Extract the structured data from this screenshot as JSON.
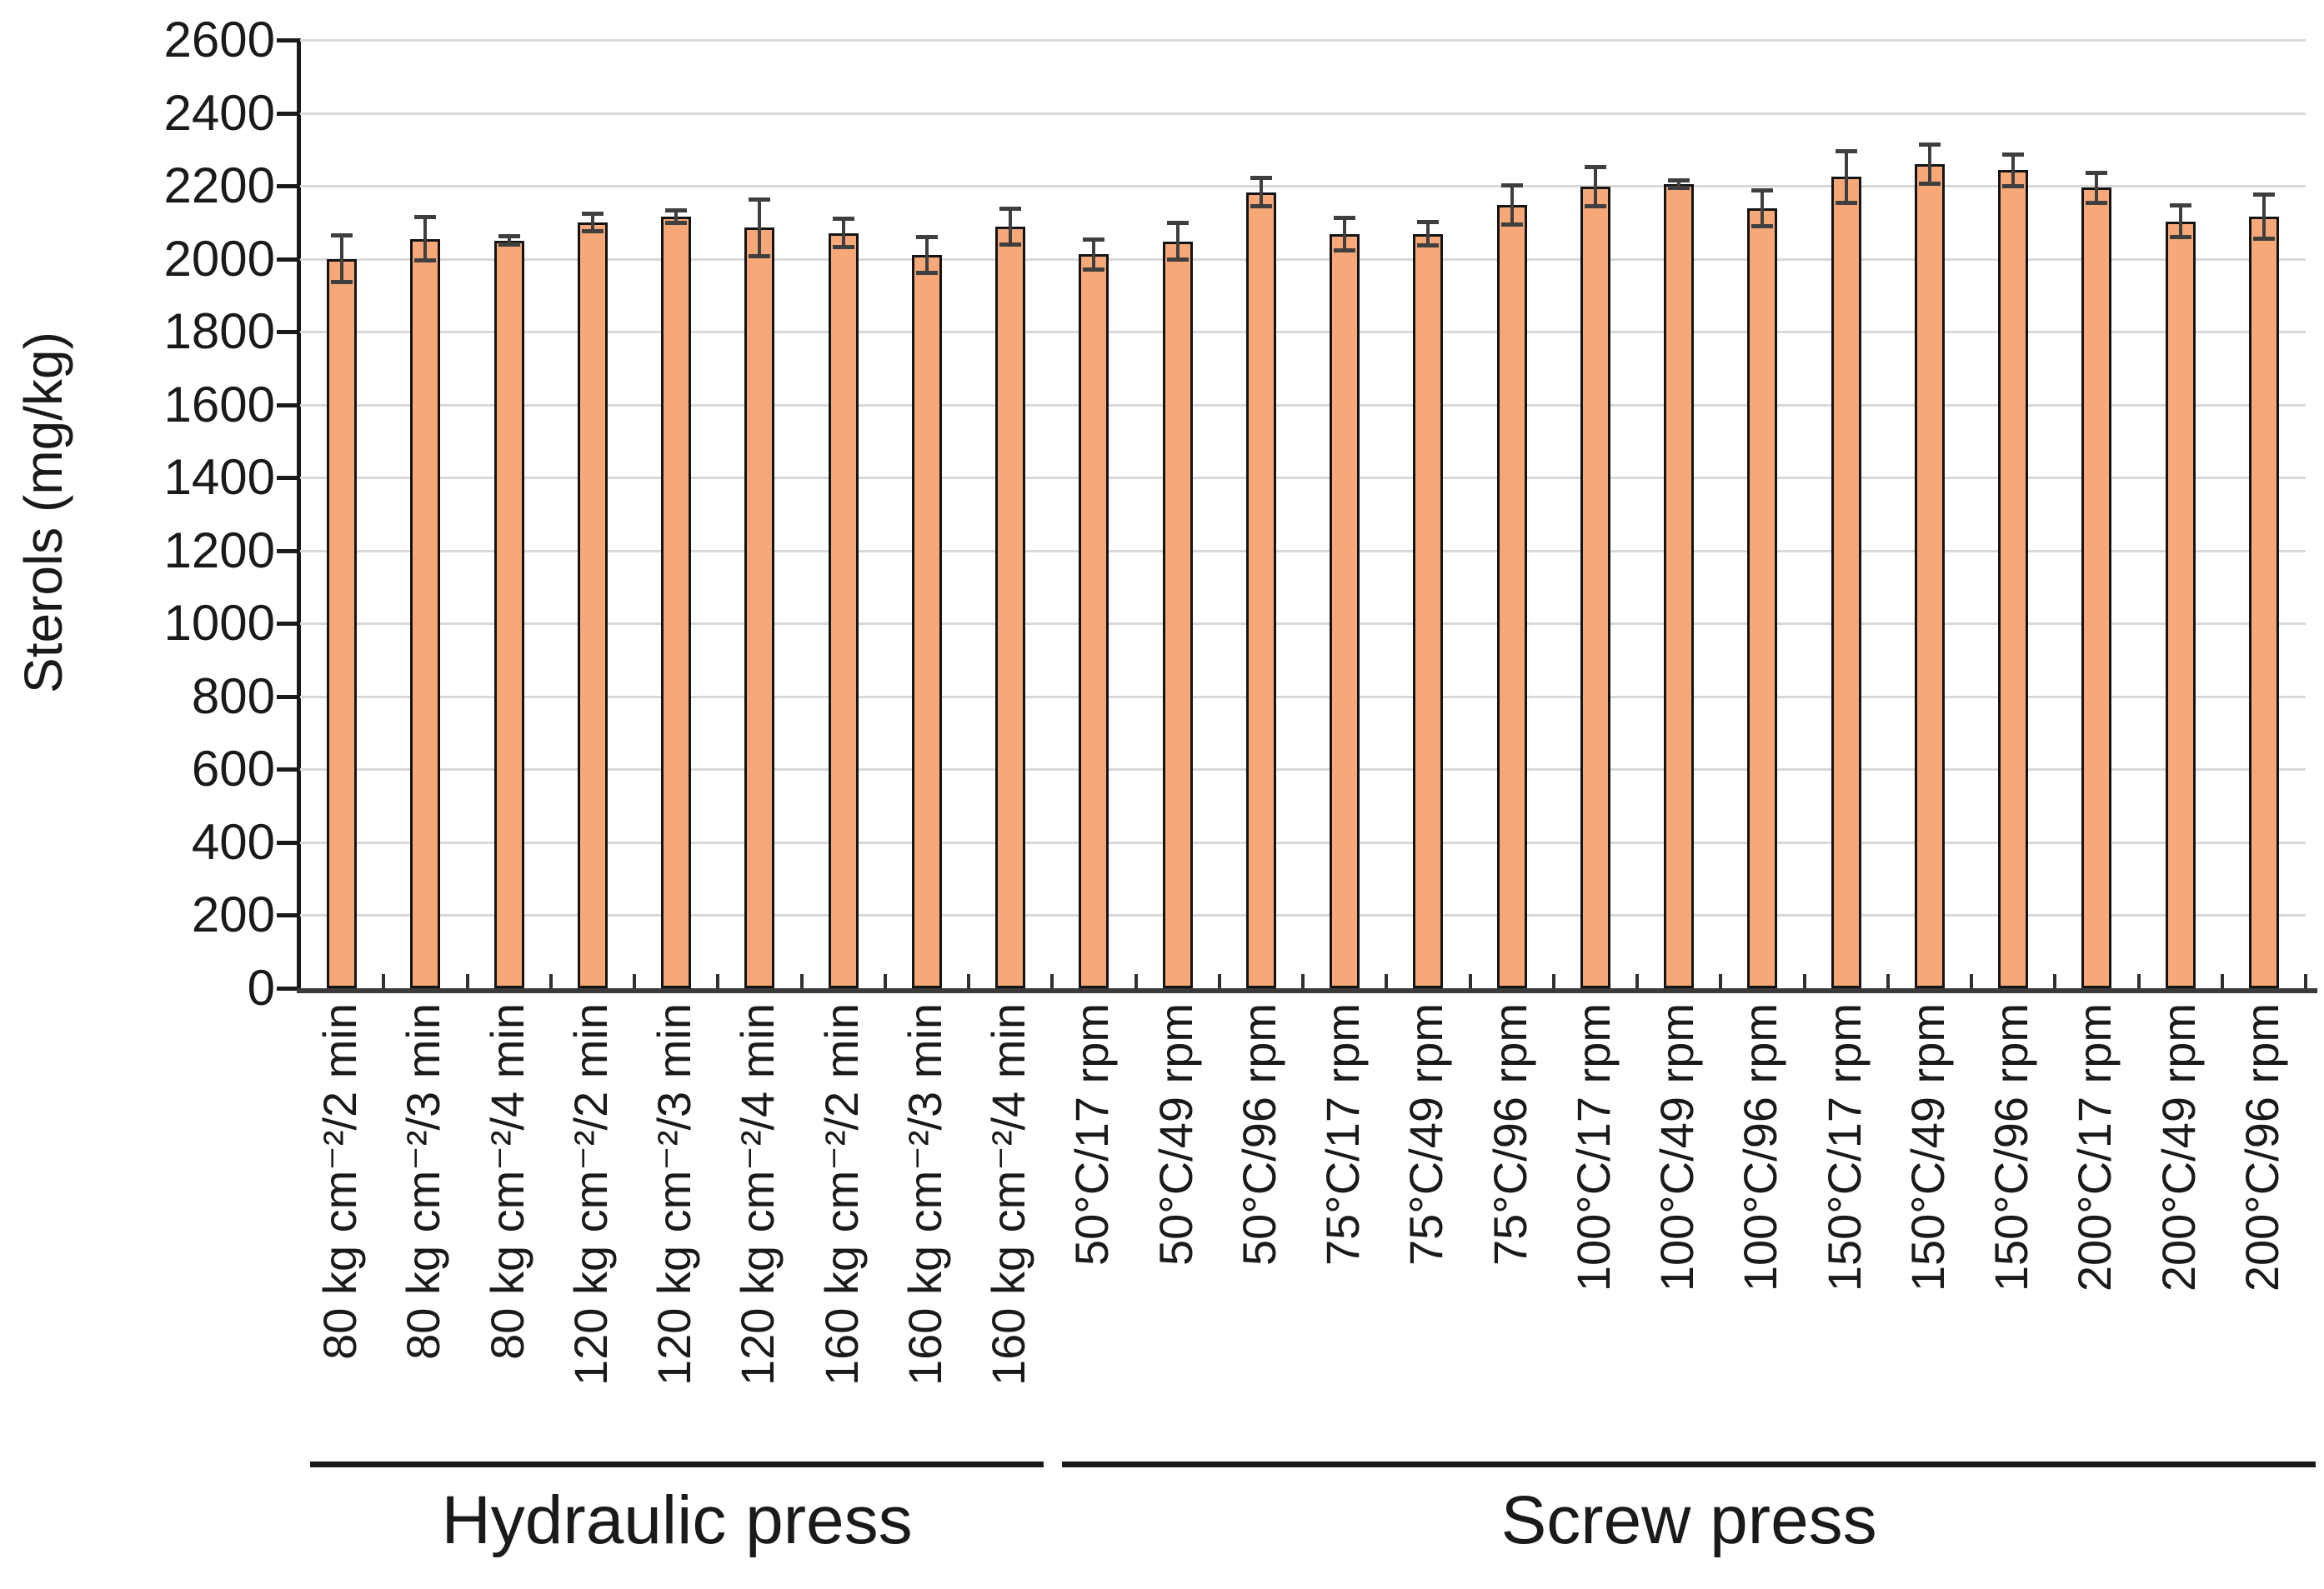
{
  "chart_data": {
    "type": "bar",
    "title": "",
    "ylabel": "Sterols (mg/kg)",
    "xlabel": "",
    "ylim": [
      0,
      2600
    ],
    "ytick_step": 200,
    "y_ticks": [
      "0",
      "200",
      "400",
      "600",
      "800",
      "1000",
      "1200",
      "1400",
      "1600",
      "1800",
      "2000",
      "2200",
      "2400",
      "2600"
    ],
    "grid": true,
    "legend": "none",
    "categories": [
      "80 kg cm⁻²/2 min",
      "80 kg cm⁻²/3 min",
      "80 kg cm⁻²/4 min",
      "120 kg cm⁻²/2 min",
      "120 kg cm⁻²/3 min",
      "120 kg cm⁻²/4 min",
      "160 kg cm⁻²/2 min",
      "160 kg cm⁻²/3 min",
      "160 kg cm⁻²/4 min",
      "50°C/17 rpm",
      "50°C/49 rpm",
      "50°C/96 rpm",
      "75°C/17 rpm",
      "75°C/49 rpm",
      "75°C/96 rpm",
      "100°C/17 rpm",
      "100°C/49 rpm",
      "100°C/96 rpm",
      "150°C/17 rpm",
      "150°C/49 rpm",
      "150°C/96 rpm",
      "200°C/17 rpm",
      "200°C/49 rpm",
      "200°C/96 rpm"
    ],
    "values": [
      2000,
      2055,
      2050,
      2100,
      2115,
      2085,
      2070,
      2010,
      2088,
      2012,
      2048,
      2182,
      2068,
      2068,
      2148,
      2198,
      2205,
      2138,
      2225,
      2260,
      2243,
      2195,
      2103,
      2115
    ],
    "errors": [
      65,
      60,
      12,
      25,
      18,
      78,
      40,
      50,
      50,
      42,
      52,
      40,
      45,
      33,
      55,
      55,
      12,
      50,
      72,
      55,
      45,
      42,
      45,
      62
    ],
    "groups": [
      {
        "label": "Hydraulic press",
        "from": 0,
        "to": 8
      },
      {
        "label": "Screw press",
        "from": 9,
        "to": 23
      }
    ],
    "colors": {
      "bar_fill": "#F6A878",
      "bar_border": "#141414",
      "error_bar": "#3F3F3F",
      "gridline": "#D9D9D9",
      "axis": "#1A1A1A",
      "baseline": "#3A3A3A",
      "category_tick": "#303030"
    }
  }
}
